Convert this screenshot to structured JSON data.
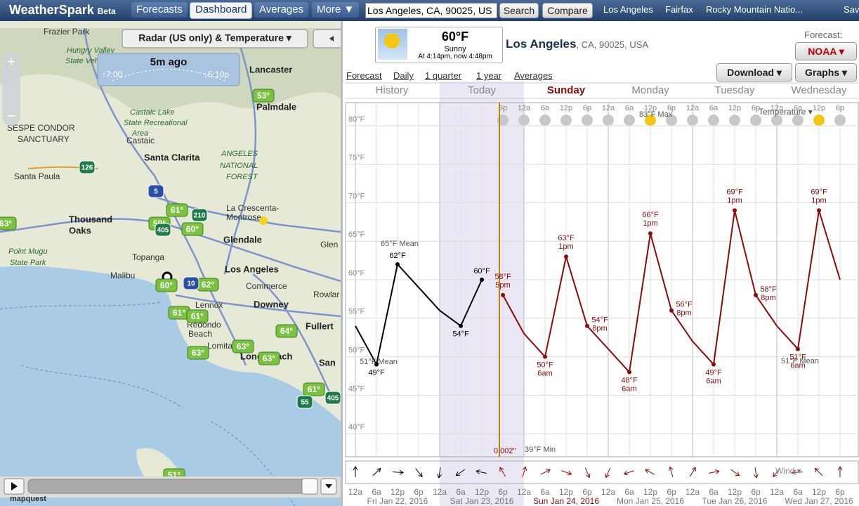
{
  "nav": {
    "brand": "WeatherSpark",
    "beta": "Beta",
    "tabs": [
      "Forecasts",
      "Dashboard",
      "Averages",
      "More ▼"
    ],
    "search": "Los Angeles, CA, 90025, US",
    "search_button": "Search",
    "compare_button": "Compare",
    "recent": [
      "Los Angeles",
      "Fairfax",
      "Rocky Mountain Natio...",
      "Sav"
    ]
  },
  "map": {
    "layer": "Radar (US only) & Temperature ▾",
    "age": "5m ago",
    "sunrise": "↑7:00",
    "sunset": "↓5:10p",
    "labels": [
      "Frazier Park",
      "Hungry Valley",
      "State Vehicul",
      "Lancaster",
      "Palmdale",
      "SESPE CONDOR",
      "SANCTUARY",
      "Castaic Lake",
      "State Recreational",
      "Area",
      "Castaic",
      "Santa Clarita",
      "ANGELES",
      "NATIONAL",
      "FOREST",
      "Santa Paula",
      "Thousand",
      "Oaks",
      "La Crescenta-",
      "Montrose",
      "Glendale",
      "Los Angeles",
      "Topanga",
      "Malibu",
      "Point Mugu",
      "State Park",
      "Commerce",
      "Downey",
      "Lennox",
      "Redondo",
      "Beach",
      "Lomita",
      "Long Beach",
      "Fullert",
      "Rowlar",
      "San",
      "Glen"
    ],
    "temperatures": [
      "53°",
      "61°",
      "59°",
      "60°",
      "63°",
      "60°",
      "62°",
      "61°",
      "61°",
      "64°",
      "63°",
      "63°",
      "63°",
      "61°",
      "51°"
    ],
    "highways": [
      "126",
      "5",
      "210",
      "405",
      "10",
      "55",
      "405"
    ],
    "credit": "mapquest"
  },
  "current": {
    "temperature": "60°F",
    "condition": "Sunny",
    "observed": "At 4:14pm, now 4:48pm",
    "city": "Los Angeles",
    "region": ", CA, 90025, USA",
    "forecast_label": "Forecast:",
    "source": "NOAA ▾",
    "download": "Download ▾",
    "graphs": "Graphs ▾"
  },
  "views": [
    "Forecast",
    "Daily",
    "1 quarter",
    "1 year",
    "Averages"
  ],
  "chart": {
    "type": "line",
    "day_tabs": [
      "History",
      "Today",
      "Sunday",
      "Monday",
      "Tuesday",
      "Wednesday"
    ],
    "dates": [
      "Fri Jan 22, 2016",
      "Sat Jan 23, 2016",
      "Sun Jan 24, 2016",
      "Mon Jan 25, 2016",
      "Tue Jan 26, 2016",
      "Wed Jan 27, 2016"
    ],
    "categories": [
      "12a",
      "6a",
      "12p",
      "6p",
      "12a",
      "6a",
      "12p",
      "6p",
      "12a",
      "6a",
      "12p",
      "6p",
      "12a",
      "6a",
      "12p",
      "6p",
      "12a",
      "6a",
      "12p",
      "6p",
      "12a",
      "6a",
      "12p",
      "6p"
    ],
    "ylim": [
      37,
      83
    ],
    "yticks": [
      {
        "value": 40,
        "label": "40°F"
      },
      {
        "value": 45,
        "label": "45°F"
      },
      {
        "value": 50,
        "label": "50°F"
      },
      {
        "value": 55,
        "label": "55°F"
      },
      {
        "value": 60,
        "label": "60°F"
      },
      {
        "value": 65,
        "label": "65°F"
      },
      {
        "value": 70,
        "label": "70°F"
      },
      {
        "value": 75,
        "label": "75°F"
      },
      {
        "value": 80,
        "label": "80°F"
      }
    ],
    "grid": true,
    "observed": {
      "color": "#000000",
      "values": [
        54,
        49,
        62,
        59,
        56,
        54,
        60,
        null,
        null,
        null,
        null,
        null,
        null,
        null,
        null,
        null,
        null,
        null,
        null,
        null,
        null,
        null,
        null,
        null
      ],
      "value_labels": [
        null,
        "49°F",
        "62°F",
        null,
        null,
        "54°F",
        "60°F",
        null,
        null,
        null,
        null,
        null,
        null,
        null,
        null,
        null,
        null,
        null,
        null,
        null,
        null,
        null,
        null,
        null
      ]
    },
    "forecast": {
      "color": "#8b0a0a",
      "values": [
        null,
        null,
        null,
        null,
        null,
        null,
        null,
        58,
        53,
        50,
        63,
        54,
        51,
        48,
        66,
        56,
        52,
        49,
        69,
        58,
        54,
        51,
        69,
        60
      ],
      "value_labels": [
        null,
        null,
        null,
        null,
        null,
        null,
        null,
        "58°F",
        null,
        "50°F",
        "63°F",
        "54°F",
        null,
        "48°F",
        "66°F",
        "56°F",
        null,
        "49°F",
        "69°F",
        "58°F",
        null,
        "51°F",
        "69°F",
        null
      ],
      "time_labels": [
        null,
        null,
        null,
        null,
        null,
        null,
        null,
        "5pm",
        null,
        "6am",
        "1pm",
        "8pm",
        null,
        "6am",
        "1pm",
        "8pm",
        null,
        "6am",
        "1pm",
        "8pm",
        null,
        "6am",
        "1pm",
        null
      ]
    },
    "notes": [
      "65°F Mean",
      "51°F Mean",
      "83°F Max",
      "39°F Min",
      "51°F Mean",
      "0.002\"",
      "Temperature ▾",
      "Wind ▾"
    ]
  }
}
